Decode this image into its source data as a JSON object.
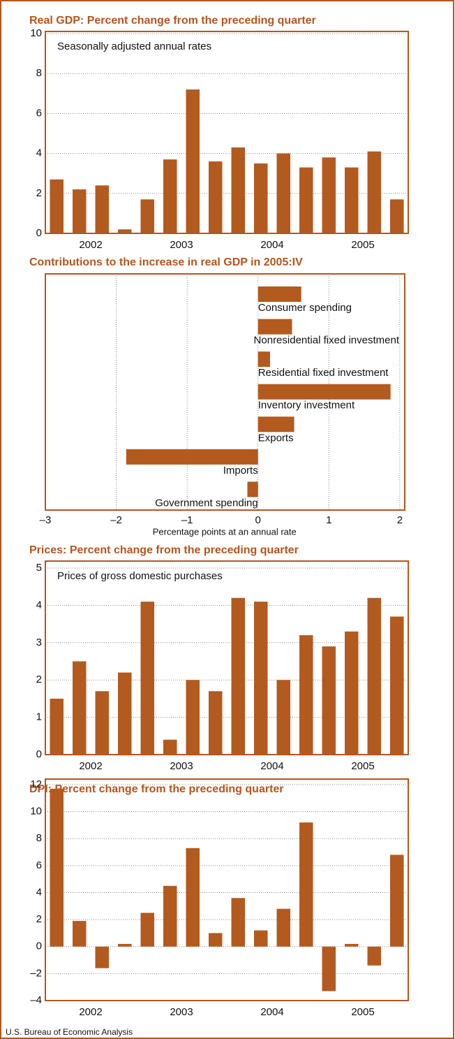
{
  "chart_data": [
    {
      "type": "bar",
      "title": "Real GDP: Percent change from the preceding quarter",
      "subtitle": "Seasonally adjusted annual rates",
      "year_labels": [
        "2002",
        "2003",
        "2004",
        "2005"
      ],
      "values": [
        2.7,
        2.2,
        2.4,
        0.2,
        1.7,
        3.7,
        7.2,
        3.6,
        4.3,
        3.5,
        4.0,
        3.3,
        3.8,
        3.3,
        4.1,
        1.7
      ],
      "color": "#b35a1f",
      "ylim": [
        0,
        10
      ],
      "yticks": [
        0,
        2,
        4,
        6,
        8,
        10
      ],
      "grid": true
    },
    {
      "type": "hbar",
      "title": "Contributions to the increase in real GDP in 2005:IV",
      "categories": [
        "Consumer spending",
        "Nonresidential fixed investment",
        "Residential fixed investment",
        "Inventory investment",
        "Exports",
        "Imports",
        "Government spending"
      ],
      "values": [
        0.61,
        0.48,
        0.17,
        1.87,
        0.51,
        -1.86,
        -0.15
      ],
      "color": "#b35a1f",
      "xlim": [
        -3,
        2.07
      ],
      "xticks": [
        {
          "value": -3,
          "label": "–3"
        },
        {
          "value": -2,
          "label": "–2"
        },
        {
          "value": -1,
          "label": "–1"
        },
        0,
        1,
        2
      ],
      "xlabel": "Percentage points at an annual rate",
      "grid": true
    },
    {
      "type": "bar",
      "title": "Prices: Percent change from the preceding quarter",
      "subtitle": "Prices of gross domestic purchases",
      "year_labels": [
        "2002",
        "2003",
        "2004",
        "2005"
      ],
      "values": [
        1.5,
        2.5,
        1.7,
        2.2,
        4.1,
        0.4,
        2.0,
        1.7,
        4.2,
        4.1,
        2.0,
        3.2,
        2.9,
        3.3,
        4.2,
        3.7
      ],
      "color": "#b35a1f",
      "ylim": [
        0,
        5
      ],
      "yticks": [
        0,
        1,
        2,
        3,
        4,
        5
      ],
      "grid": true
    },
    {
      "type": "bar",
      "title": "DPI: Percent change from the preceding quarter",
      "year_labels": [
        "2002",
        "2003",
        "2004",
        "2005"
      ],
      "values": [
        11.7,
        1.9,
        -1.6,
        0.2,
        2.5,
        4.5,
        7.3,
        1.0,
        3.6,
        1.2,
        2.8,
        9.2,
        -3.3,
        0.2,
        -1.4,
        6.8
      ],
      "color": "#b35a1f",
      "ylim": [
        -4,
        12
      ],
      "yticks": [
        {
          "value": -4,
          "label": "–4"
        },
        {
          "value": -2,
          "label": "–2"
        },
        0,
        2,
        4,
        6,
        8,
        10,
        12
      ],
      "grid": true
    }
  ],
  "source": "U.S. Bureau of Economic Analysis"
}
